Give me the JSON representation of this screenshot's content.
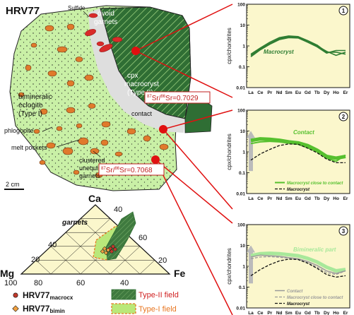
{
  "sample": {
    "title": "HRV77",
    "labels": {
      "sulfide": "Sulfide",
      "ovoid": [
        "ovoid",
        "garnets"
      ],
      "cpx": [
        "cpx",
        "macrocryst",
        "(Type II)"
      ],
      "contact": "contact",
      "bimin": [
        "bimineralic",
        "eclogite",
        "(Type I)"
      ],
      "phlogopite": "phlogopite",
      "melt": "melt pockets",
      "clustered": [
        "clustered",
        "unequilibrated",
        "garnets"
      ],
      "scale": "2 cm"
    },
    "sr_labels": [
      {
        "ratio": "Sr/",
        "den": "Sr=0.7029",
        "sup1": "87",
        "sup2": "86"
      },
      {
        "ratio": "Sr/",
        "den": "Sr=0.7068",
        "sup1": "87",
        "sup2": "86"
      }
    ]
  },
  "ternary": {
    "apex_top": "Ca",
    "apex_left": "Mg",
    "apex_right": "Fe",
    "field_label": "garnets",
    "left_ticks": [
      "20",
      "40"
    ],
    "right_ticks": [
      "40",
      "60",
      "20"
    ],
    "bottom_ticks": [
      "100",
      "80",
      "60",
      "40"
    ],
    "legend": [
      {
        "label": "HRV77",
        "sub": "macrocx"
      },
      {
        "label": "HRV77",
        "sub": "bimin"
      },
      {
        "label": "Type-II field"
      },
      {
        "label": "Type-I field"
      }
    ],
    "colors": {
      "type2": "#3f7a3f",
      "type1": "#b9e87a",
      "border": "#e87722",
      "macro_dot": "#c0392b",
      "bimin_dot": "#f0a040"
    }
  },
  "chart_data": [
    {
      "type": "line",
      "panel": "1",
      "ylabel": "cpx/chondrites",
      "yscale": "log",
      "ylim": [
        0.01,
        100
      ],
      "yticks": [
        "100",
        "10",
        "1",
        "0.1",
        "0.01"
      ],
      "categories": [
        "La",
        "Ce",
        "Pr",
        "Nd",
        "Sm",
        "Eu",
        "Gd",
        "Tb",
        "Dy",
        "Ho",
        "Er"
      ],
      "annotation": "Macrocryst",
      "series": [
        {
          "name": "Macrocryst",
          "color": "#2e7d32",
          "values": [
            0.35,
            0.7,
            1.3,
            2.2,
            2.8,
            2.6,
            1.7,
            1.0,
            0.55,
            0.35,
            0.5
          ]
        },
        {
          "name": "Macrocryst",
          "color": "#2e7d32",
          "values": [
            0.4,
            0.8,
            1.5,
            2.5,
            3.0,
            2.8,
            1.8,
            1.1,
            0.5,
            0.5,
            0.4
          ]
        },
        {
          "name": "Macrocryst",
          "color": "#2e7d32",
          "values": [
            0.3,
            0.65,
            1.2,
            2.0,
            2.5,
            2.4,
            1.5,
            0.9,
            0.45,
            0.6,
            0.6
          ]
        }
      ]
    },
    {
      "type": "line",
      "panel": "2",
      "ylabel": "cpx/chondrites",
      "yscale": "log",
      "ylim": [
        0.01,
        100
      ],
      "yticks": [
        "100",
        "10",
        "1",
        "0.1",
        "0.01"
      ],
      "categories": [
        "La",
        "Ce",
        "Pr",
        "Nd",
        "Sm",
        "Eu",
        "Gd",
        "Tb",
        "Dy",
        "Ho",
        "Er"
      ],
      "annotation": "Contact",
      "legend": [
        "Macrocryst close to contact",
        "Macrocryst"
      ],
      "series": [
        {
          "name": "Contact",
          "color": "#56c02e",
          "width": 5,
          "values": [
            3.5,
            4.2,
            4.0,
            3.6,
            3.0,
            2.7,
            2.0,
            1.2,
            0.6,
            0.5,
            0.6
          ]
        },
        {
          "name": "Macrocryst close to contact",
          "color": "#56c02e",
          "width": 2,
          "values": [
            2.5,
            3.0,
            3.2,
            3.0,
            2.6,
            2.3,
            1.6,
            1.0,
            0.5,
            0.35,
            0.7
          ]
        },
        {
          "name": "Macrocryst",
          "color": "#111111",
          "width": 1.3,
          "dash": "4,2",
          "values": [
            0.4,
            0.8,
            1.3,
            2.0,
            2.4,
            2.3,
            1.5,
            0.9,
            0.45,
            0.3,
            0.3
          ]
        }
      ],
      "arrow": {
        "from": 0.12,
        "to": 8,
        "at": "La"
      }
    },
    {
      "type": "line",
      "panel": "3",
      "ylabel": "cpx/chondrites",
      "yscale": "log",
      "ylim": [
        0.01,
        100
      ],
      "yticks": [
        "100",
        "10",
        "1",
        "0.1",
        "0.01"
      ],
      "categories": [
        "La",
        "Ce",
        "Pr",
        "Nd",
        "Sm",
        "Eu",
        "Gd",
        "Tb",
        "Dy",
        "Ho",
        "Er"
      ],
      "annotation": "Bimineralic part",
      "legend": [
        "Contact",
        "Macrocryst close to contact",
        "Macrocryst"
      ],
      "series": [
        {
          "name": "Bimineralic part",
          "color": "#a8e89a",
          "width": 5,
          "values": [
            3.2,
            4.0,
            4.2,
            4.0,
            3.6,
            3.2,
            2.4,
            1.6,
            0.9,
            0.6,
            0.7
          ]
        },
        {
          "name": "Contact",
          "color": "#9a9a9a",
          "width": 1.5,
          "values": [
            2.8,
            3.4,
            3.2,
            3.0,
            2.6,
            2.3,
            1.7,
            1.1,
            0.6,
            0.45,
            0.6
          ]
        },
        {
          "name": "Macrocryst close to contact",
          "color": "#9a9a9a",
          "width": 1.3,
          "dash": "4,2",
          "values": [
            2.3,
            2.8,
            2.9,
            2.7,
            2.4,
            2.1,
            1.5,
            0.9,
            0.5,
            0.4,
            0.6
          ]
        },
        {
          "name": "Macrocryst",
          "color": "#111111",
          "width": 1.3,
          "dash": "4,2",
          "values": [
            0.35,
            0.7,
            1.2,
            1.8,
            2.2,
            2.1,
            1.4,
            0.8,
            0.4,
            0.3,
            0.35
          ]
        }
      ],
      "arrow": {
        "from": 0.15,
        "to": 8,
        "at": "La"
      }
    }
  ]
}
